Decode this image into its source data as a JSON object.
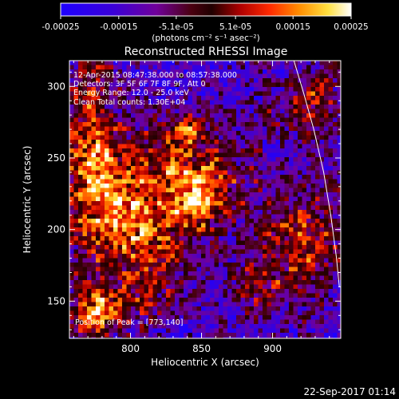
{
  "chart_data": {
    "type": "heatmap",
    "title": "Reconstructed RHESSI Image",
    "xlabel": "Heliocentric X (arcsec)",
    "ylabel": "Heliocentric Y (arcsec)",
    "xlim": [
      757,
      948
    ],
    "ylim": [
      124,
      318
    ],
    "x_ticks": [
      800,
      850,
      900
    ],
    "y_ticks": [
      150,
      200,
      250,
      300
    ],
    "colorbar": {
      "range": [
        -0.00025,
        0.00025
      ],
      "ticks": [
        {
          "value": -0.00025,
          "label": "-0.00025"
        },
        {
          "value": -0.00015,
          "label": "-0.00015"
        },
        {
          "value": -5.1e-05,
          "label": "-5.1e-05"
        },
        {
          "value": 5.1e-05,
          "label": "5.1e-05"
        },
        {
          "value": 0.00015,
          "label": "0.00015"
        },
        {
          "value": 0.00025,
          "label": "0.00025"
        }
      ],
      "units_label": "(photons cm⁻² s⁻¹ asec⁻²)"
    },
    "annotations": [
      "12-Apr-2015 08:47:38.000 to 08:57:38.000",
      "Detectors: 3F 5F 6F 7F 8F 9F, Att 0",
      "Energy Range: 12.0 - 25.0 keV",
      "Clean     Total counts: 1.30E+04"
    ],
    "peak_label": "Position of Peak = [773,140]",
    "limb_curve": [
      [
        915,
        318
      ],
      [
        922,
        295
      ],
      [
        929,
        270
      ],
      [
        936,
        240
      ],
      [
        941,
        210
      ],
      [
        945,
        180
      ],
      [
        947,
        160
      ]
    ],
    "bright_regions": [
      {
        "x": 770,
        "y": 260,
        "sx": 14,
        "sy": 45,
        "w": 1.0
      },
      {
        "x": 790,
        "y": 215,
        "sx": 20,
        "sy": 30,
        "w": 0.9
      },
      {
        "x": 835,
        "y": 240,
        "sx": 30,
        "sy": 25,
        "w": 0.85
      },
      {
        "x": 840,
        "y": 270,
        "sx": 8,
        "sy": 7,
        "w": 1.0
      },
      {
        "x": 820,
        "y": 195,
        "sx": 25,
        "sy": 20,
        "w": 0.7
      },
      {
        "x": 773,
        "y": 140,
        "sx": 12,
        "sy": 12,
        "w": 1.1
      },
      {
        "x": 800,
        "y": 150,
        "sx": 25,
        "sy": 15,
        "w": 0.6
      },
      {
        "x": 920,
        "y": 190,
        "sx": 25,
        "sy": 30,
        "w": 0.85
      },
      {
        "x": 930,
        "y": 290,
        "sx": 12,
        "sy": 20,
        "w": 0.8
      },
      {
        "x": 850,
        "y": 225,
        "sx": 15,
        "sy": 15,
        "w": 0.8
      },
      {
        "x": 890,
        "y": 160,
        "sx": 15,
        "sy": 12,
        "w": 0.5
      },
      {
        "x": 900,
        "y": 280,
        "sx": 10,
        "sy": 10,
        "w": 0.4
      }
    ]
  },
  "footer": {
    "date_stamp": "22-Sep-2017 01:14"
  }
}
